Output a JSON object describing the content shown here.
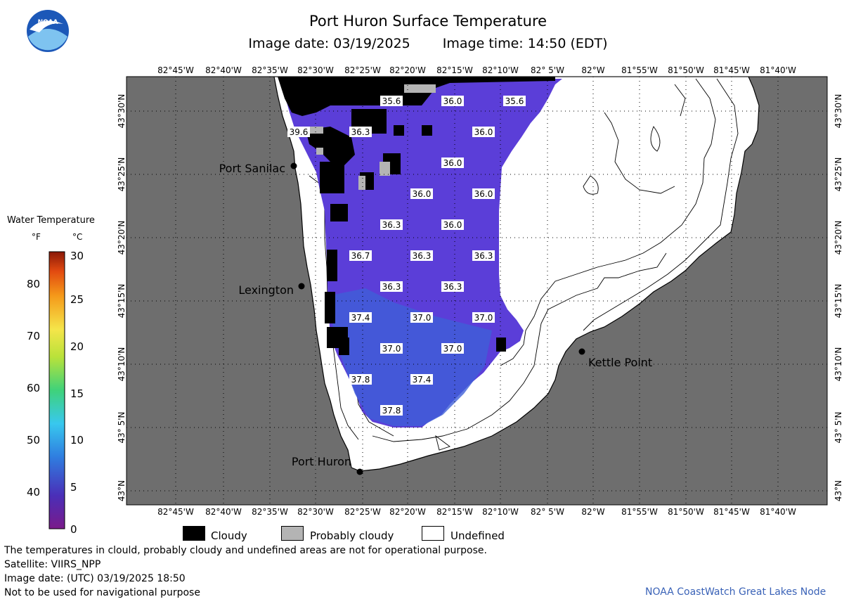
{
  "header": {
    "title": "Port Huron Surface Temperature",
    "image_date": "Image date: 03/19/2025",
    "image_time": "Image time: 14:50 (EDT)"
  },
  "logo": {
    "text": "NOAA"
  },
  "map": {
    "lon_labels": [
      "82°45'W",
      "82°40'W",
      "82°35'W",
      "82°30'W",
      "82°25'W",
      "82°20'W",
      "82°15'W",
      "82°10'W",
      "82° 5'W",
      "82°W",
      "81°55'W",
      "81°50'W",
      "81°45'W",
      "81°40'W"
    ],
    "lat_labels": [
      "43°30'N",
      "43°25'N",
      "43°20'N",
      "43°15'N",
      "43°10'N",
      "43° 5'N",
      "43°N"
    ],
    "places": [
      "Port Sanilac",
      "Lexington",
      "Kettle Point",
      "Port Huron"
    ],
    "temperature_labels_f": [
      [
        "35.6",
        "36.0",
        "35.6"
      ],
      [
        "39.6",
        "36.3",
        "36.0"
      ],
      [
        "36.0"
      ],
      [
        "36.0",
        "36.0"
      ],
      [
        "36.3",
        "36.0"
      ],
      [
        "36.7",
        "36.3",
        "36.3"
      ],
      [
        "36.3",
        "36.3"
      ],
      [
        "37.4",
        "37.0",
        "37.0"
      ],
      [
        "37.0",
        "37.0"
      ],
      [
        "37.8",
        "37.4"
      ],
      [
        "37.8"
      ]
    ],
    "colors": {
      "land": "#6e6e6e",
      "water": "#5d3fd6",
      "cloudy": "#000000",
      "probably_cloudy": "#b4b4b4",
      "undefined": "#ffffff"
    }
  },
  "colorbar": {
    "title": "Water Temperature",
    "unit_f": "°F",
    "unit_c": "°C",
    "ticks_f": [
      "80",
      "70",
      "60",
      "50",
      "40"
    ],
    "ticks_c": [
      "30",
      "25",
      "20",
      "15",
      "10",
      "5",
      "0"
    ]
  },
  "legend": {
    "cloudy": "Cloudy",
    "probably_cloudy": "Probably cloudy",
    "undefined": "Undefined"
  },
  "footer": {
    "line1": "The temperatures in clould, probably cloudy and undefined areas are not for operational purpose.",
    "line2": "Satellite: VIIRS_NPP",
    "line3": "Image date: (UTC) 03/19/2025  18:50",
    "line4": "Not to be used for navigational purpose",
    "credit": "NOAA CoastWatch Great Lakes Node"
  }
}
